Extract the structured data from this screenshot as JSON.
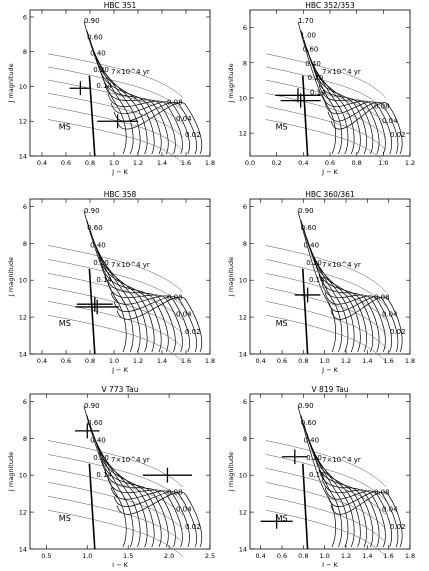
{
  "chart_data": [
    {
      "type": "line",
      "title": "HBC 351",
      "xlabel": "J − K",
      "ylabel": "J magnitude",
      "xlim": [
        0.3,
        1.8
      ],
      "ylim": [
        14,
        5.6
      ],
      "xticks": [
        "0.4",
        "0.6",
        "0.8",
        "1.0",
        "1.2",
        "1.4",
        "1.6",
        "1.8"
      ],
      "yticks": [
        "6",
        "8",
        "10",
        "12",
        "14"
      ],
      "ytick_values": [
        6,
        8,
        10,
        12,
        14
      ],
      "mass_labels": [
        "0.90",
        "0.60",
        "0.40",
        "0.20",
        "0.14",
        "0.08",
        "0.04",
        "0.02"
      ],
      "age_label": "7×10^4 yr",
      "ms_label": "MS",
      "points": [
        {
          "x": 0.72,
          "y": 10.1,
          "xerr": 0.09,
          "yerr": 0.4
        },
        {
          "x": 1.03,
          "y": 12.0,
          "xerr": 0.17,
          "yerr": 0.4
        }
      ]
    },
    {
      "type": "line",
      "title": "HBC 352/353",
      "xlabel": "J − K",
      "ylabel": "J magnitude",
      "xlim": [
        0.0,
        1.2
      ],
      "ylim": [
        13.3,
        5.0
      ],
      "xticks": [
        "0.0",
        "0.2",
        "0.4",
        "0.6",
        "0.8",
        "1.0",
        "1.2"
      ],
      "yticks": [
        "6",
        "8",
        "10",
        "12"
      ],
      "ytick_values": [
        6,
        8,
        10,
        12
      ],
      "mass_labels": [
        "1.70",
        "1.00",
        "0.60",
        "0.40",
        "0.20",
        "0.14",
        "0.08",
        "0.04",
        "0.02"
      ],
      "age_label": "7×10^4 yr",
      "ms_label": "MS",
      "points": [
        {
          "x": 0.36,
          "y": 9.85,
          "xerr": 0.17,
          "yerr": 0.4
        },
        {
          "x": 0.38,
          "y": 10.15,
          "xerr": 0.15,
          "yerr": 0.4
        }
      ]
    },
    {
      "type": "line",
      "title": "HBC 358",
      "xlabel": "J − K",
      "ylabel": "J magnitude",
      "xlim": [
        0.3,
        1.8
      ],
      "ylim": [
        14,
        5.6
      ],
      "xticks": [
        "0.4",
        "0.6",
        "0.8",
        "1.0",
        "1.2",
        "1.4",
        "1.6",
        "1.8"
      ],
      "yticks": [
        "6",
        "8",
        "10",
        "12",
        "14"
      ],
      "ytick_values": [
        6,
        8,
        10,
        12,
        14
      ],
      "mass_labels": [
        "0.90",
        "0.60",
        "0.40",
        "0.20",
        "0.14",
        "0.08",
        "0.04",
        "0.02"
      ],
      "age_label": "7×10^4 yr",
      "ms_label": "MS",
      "points": [
        {
          "x": 0.84,
          "y": 11.3,
          "xerr": 0.15,
          "yerr": 0.4
        },
        {
          "x": 0.86,
          "y": 11.45,
          "xerr": 0.18,
          "yerr": 0.4
        }
      ]
    },
    {
      "type": "line",
      "title": "HBC 360/361",
      "xlabel": "J − K",
      "ylabel": "J magnitude",
      "xlim": [
        0.3,
        1.8
      ],
      "ylim": [
        14,
        5.6
      ],
      "xticks": [
        "0.4",
        "0.6",
        "0.8",
        "1.0",
        "1.2",
        "1.4",
        "1.6",
        "1.8"
      ],
      "yticks": [
        "6",
        "8",
        "10",
        "12",
        "14"
      ],
      "ytick_values": [
        6,
        8,
        10,
        12,
        14
      ],
      "mass_labels": [
        "0.90",
        "0.60",
        "0.40",
        "0.20",
        "0.14",
        "0.08",
        "0.04",
        "0.02"
      ],
      "age_label": "7×10^4 yr",
      "ms_label": "MS",
      "points": [
        {
          "x": 0.84,
          "y": 10.8,
          "xerr": 0.12,
          "yerr": 0.4
        }
      ]
    },
    {
      "type": "line",
      "title": "V 773 Tau",
      "xlabel": "J − K",
      "ylabel": "J magnitude",
      "xlim": [
        0.3,
        2.5
      ],
      "ylim": [
        14,
        5.6
      ],
      "xticks": [
        "0.5",
        "1.0",
        "1.5",
        "2.0",
        "2.5"
      ],
      "yticks": [
        "6",
        "8",
        "10",
        "12",
        "14"
      ],
      "ytick_values": [
        6,
        8,
        10,
        12,
        14
      ],
      "mass_labels": [
        "0.90",
        "0.60",
        "0.40",
        "0.20",
        "0.14",
        "0.08",
        "0.04",
        "0.02"
      ],
      "age_label": "7×10^4 yr",
      "ms_label": "MS",
      "points": [
        {
          "x": 1.0,
          "y": 7.6,
          "xerr": 0.15,
          "yerr": 0.4
        },
        {
          "x": 1.98,
          "y": 10.0,
          "xerr": 0.3,
          "yerr": 0.4
        }
      ]
    },
    {
      "type": "line",
      "title": "V 819 Tau",
      "xlabel": "J − K",
      "ylabel": "J magnitude",
      "xlim": [
        0.3,
        1.8
      ],
      "ylim": [
        14,
        5.6
      ],
      "xticks": [
        "0.4",
        "0.6",
        "0.8",
        "1.0",
        "1.2",
        "1.4",
        "1.6",
        "1.8"
      ],
      "yticks": [
        "6",
        "8",
        "10",
        "12",
        "14"
      ],
      "ytick_values": [
        6,
        8,
        10,
        12,
        14
      ],
      "mass_labels": [
        "0.90",
        "0.60",
        "0.40",
        "0.20",
        "0.14",
        "0.08",
        "0.04",
        "0.02"
      ],
      "age_label": "7×10^4 yr",
      "ms_label": "MS",
      "points": [
        {
          "x": 0.72,
          "y": 9.0,
          "xerr": 0.12,
          "yerr": 0.4
        },
        {
          "x": 0.55,
          "y": 12.5,
          "xerr": 0.15,
          "yerr": 0.4
        }
      ]
    }
  ]
}
